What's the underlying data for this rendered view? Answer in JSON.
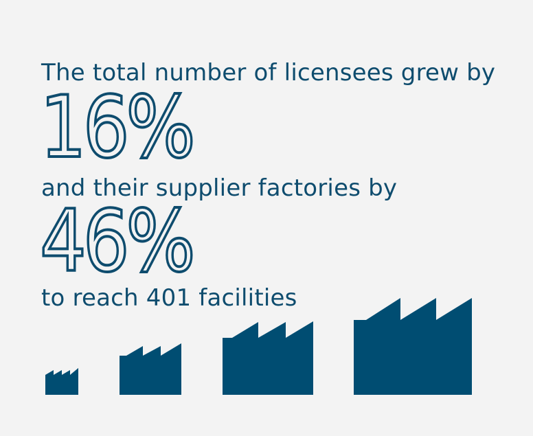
{
  "text": {
    "line1": "The total number of licensees grew by",
    "big1": "16%",
    "line2": "and their supplier factories by",
    "big2": "46%",
    "line3": "to reach 401 facilities"
  },
  "icons": [
    "factory-icon",
    "factory-icon",
    "factory-icon",
    "factory-icon"
  ],
  "colors": {
    "background": "#f3f3f3",
    "primary": "#0e4c6e",
    "factory": "#004d72"
  }
}
